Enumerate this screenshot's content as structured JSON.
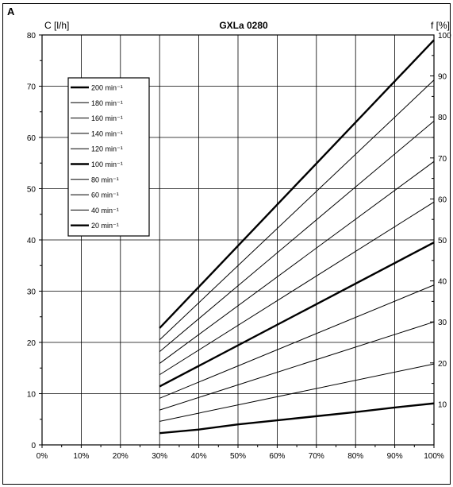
{
  "panel_label": "A",
  "chart_data": {
    "type": "line",
    "title": "GXLa 0280",
    "ylabel": "C [l/h]",
    "y2label": "f [%]",
    "xlim": [
      0,
      100
    ],
    "ylim": [
      0,
      80
    ],
    "y2lim": [
      0,
      100
    ],
    "grid": true,
    "legend_position": "top-left",
    "x_ticks": [
      0,
      10,
      20,
      30,
      40,
      50,
      60,
      70,
      80,
      90,
      100
    ],
    "x_tick_labels": [
      "0%",
      "10%",
      "20%",
      "30%",
      "40%",
      "50%",
      "60%",
      "70%",
      "80%",
      "90%",
      "100%"
    ],
    "y_ticks": [
      0,
      10,
      20,
      30,
      40,
      50,
      60,
      70,
      80
    ],
    "y_tick_labels": [
      "0",
      "10",
      "20",
      "30",
      "40",
      "50",
      "60",
      "70",
      "80"
    ],
    "y2_ticks": [
      10,
      20,
      30,
      40,
      50,
      60,
      70,
      80,
      90,
      100
    ],
    "y2_tick_labels": [
      "10",
      "20",
      "30",
      "40",
      "50",
      "60",
      "70",
      "80",
      "90",
      "100"
    ],
    "series": [
      {
        "name": "200 min⁻¹",
        "bold": true,
        "x": [
          30,
          100
        ],
        "y": [
          22.8,
          79.0
        ]
      },
      {
        "name": "180 min⁻¹",
        "bold": false,
        "x": [
          30,
          100
        ],
        "y": [
          20.5,
          71.2
        ]
      },
      {
        "name": "160 min⁻¹",
        "bold": false,
        "x": [
          30,
          100
        ],
        "y": [
          18.2,
          63.2
        ]
      },
      {
        "name": "140 min⁻¹",
        "bold": false,
        "x": [
          30,
          100
        ],
        "y": [
          15.9,
          55.3
        ]
      },
      {
        "name": "120 min⁻¹",
        "bold": false,
        "x": [
          30,
          100
        ],
        "y": [
          13.7,
          47.4
        ]
      },
      {
        "name": "100 min⁻¹",
        "bold": true,
        "x": [
          30,
          100
        ],
        "y": [
          11.4,
          39.5
        ]
      },
      {
        "name": "80 min⁻¹",
        "bold": false,
        "x": [
          30,
          100
        ],
        "y": [
          9.1,
          31.2
        ]
      },
      {
        "name": "60 min⁻¹",
        "bold": false,
        "x": [
          30,
          100
        ],
        "y": [
          6.8,
          24.0
        ]
      },
      {
        "name": "40 min⁻¹",
        "bold": false,
        "x": [
          30,
          100
        ],
        "y": [
          4.6,
          15.8
        ]
      },
      {
        "name": "20 min⁻¹",
        "bold": true,
        "x": [
          30,
          40,
          50,
          60,
          70,
          80,
          90,
          100
        ],
        "y": [
          2.3,
          3.0,
          4.0,
          4.8,
          5.6,
          6.4,
          7.3,
          8.1
        ]
      }
    ]
  }
}
